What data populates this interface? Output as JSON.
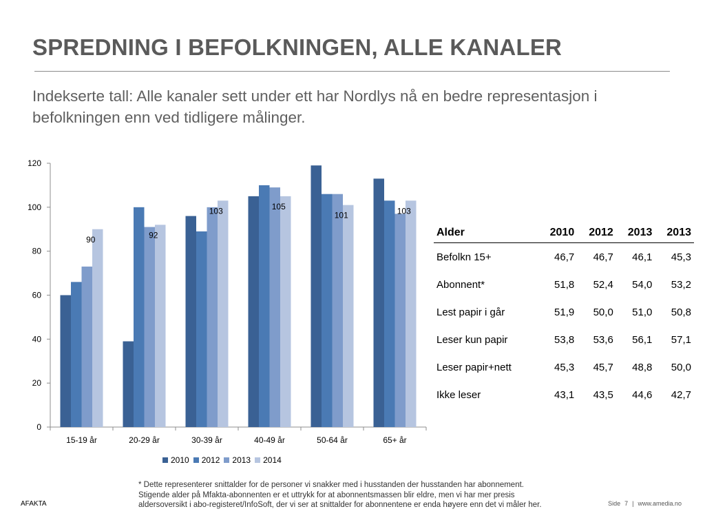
{
  "header": {
    "title": "SPREDNING I BEFOLKNINGEN, ALLE KANALER",
    "subtitle": "Indekserte tall: Alle kanaler sett under ett har Nordlys nå en bedre representasjon i befolkningen enn ved tidligere målinger."
  },
  "chart_data": {
    "type": "bar",
    "categories": [
      "15-19 år",
      "20-29 år",
      "30-39 år",
      "40-49 år",
      "50-64 år",
      "65+ år"
    ],
    "series": [
      {
        "name": "2010",
        "color": "#3a6194",
        "values": [
          60,
          39,
          96,
          105,
          119,
          113
        ]
      },
      {
        "name": "2012",
        "color": "#4a7ab4",
        "values": [
          66,
          100,
          89,
          110,
          106,
          103
        ]
      },
      {
        "name": "2013",
        "color": "#7f9ccb",
        "values": [
          73,
          91,
          100,
          109,
          106,
          97
        ]
      },
      {
        "name": "2014",
        "color": "#b6c5e0",
        "values": [
          90,
          92,
          103,
          105,
          101,
          103
        ]
      }
    ],
    "data_labels": {
      "series": "2014",
      "labels": [
        "90",
        "92",
        "103",
        "105",
        "101",
        "103"
      ]
    },
    "yticks": [
      "0",
      "20",
      "40",
      "60",
      "80",
      "100",
      "120"
    ],
    "ylim": [
      0,
      120
    ],
    "grid": false,
    "legend_position": "bottom"
  },
  "table": {
    "headers": [
      "Alder",
      "2010",
      "2012",
      "2013",
      "2013"
    ],
    "rows": [
      [
        "Befolkn 15+",
        "46,7",
        "46,7",
        "46,1",
        "45,3"
      ],
      [
        "Abonnent*",
        "51,8",
        "52,4",
        "54,0",
        "53,2"
      ],
      [
        "Lest papir i går",
        "51,9",
        "50,0",
        "51,0",
        "50,8"
      ],
      [
        "Leser kun papir",
        "53,8",
        "53,6",
        "56,1",
        "57,1"
      ],
      [
        "Leser papir+nett",
        "45,3",
        "45,7",
        "48,8",
        "50,0"
      ],
      [
        "Ikke leser",
        "43,1",
        "43,5",
        "44,6",
        "42,7"
      ]
    ]
  },
  "footnote": {
    "lines": [
      "* Dette representerer snittalder for de personer vi snakker med i husstanden der husstanden har abonnement.",
      "Stigende alder på Mfakta-abonnenten er et uttrykk for at abonnentsmassen blir eldre, men vi har mer presis",
      "aldersoversikt i abo-registeret/InfoSoft, der vi ser at snittalder for abonnentene er enda høyere enn det vi måler her."
    ]
  },
  "footer": {
    "left": "AFAKTA",
    "page_label": "Side",
    "page_number": "7",
    "separator": "|",
    "site": "www.amedia.no"
  }
}
